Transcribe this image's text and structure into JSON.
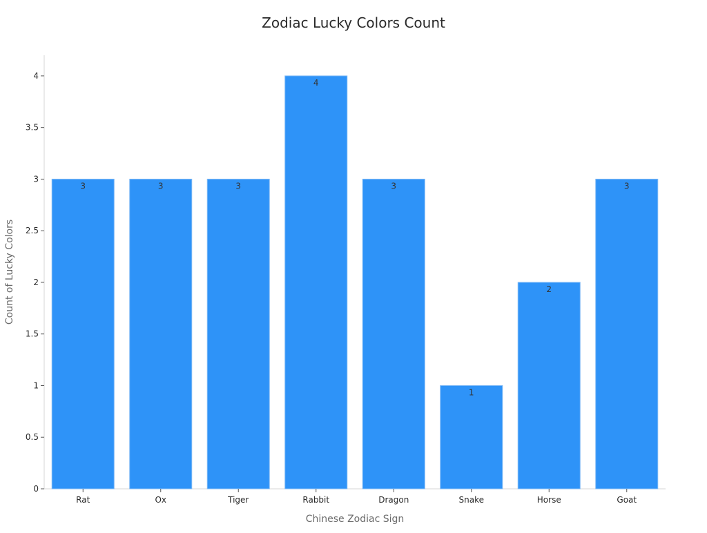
{
  "chart_data": {
    "type": "bar",
    "title": "Zodiac Lucky Colors Count",
    "xlabel": "Chinese Zodiac Sign",
    "ylabel": "Count of Lucky Colors",
    "categories": [
      "Rat",
      "Ox",
      "Tiger",
      "Rabbit",
      "Dragon",
      "Snake",
      "Horse",
      "Goat"
    ],
    "values": [
      3,
      3,
      3,
      4,
      3,
      1,
      2,
      3
    ],
    "data_labels": [
      "3",
      "3",
      "3",
      "4",
      "3",
      "1",
      "2",
      "3"
    ],
    "ylim": [
      0,
      4.2
    ],
    "yticks": [
      0,
      0.5,
      1,
      1.5,
      2,
      2.5,
      3,
      3.5,
      4
    ],
    "ytick_labels": [
      "0",
      "0.5",
      "1",
      "1.5",
      "2",
      "2.5",
      "3",
      "3.5",
      "4"
    ],
    "grid": false,
    "legend": "none",
    "bar_color": "#2e93f8"
  }
}
